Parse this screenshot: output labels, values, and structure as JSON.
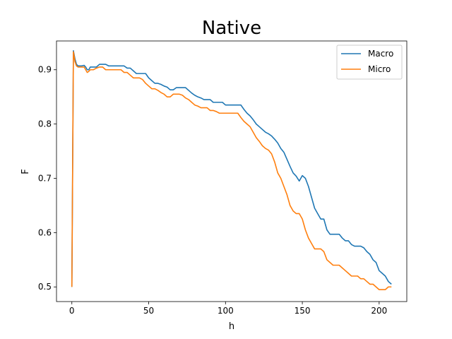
{
  "chart_data": {
    "type": "line",
    "title": "Native",
    "xlabel": "h",
    "ylabel": "F",
    "xlim": [
      -10,
      218
    ],
    "ylim": [
      0.473,
      0.953
    ],
    "xticks": [
      0,
      50,
      100,
      150,
      200
    ],
    "yticks": [
      0.5,
      0.6,
      0.7,
      0.8,
      0.9
    ],
    "grid": false,
    "legend_position": "top-right",
    "series": [
      {
        "name": "Macro",
        "color": "#1f77b4",
        "x": [
          0,
          1,
          2,
          3,
          4,
          6,
          8,
          9,
          10,
          11,
          12,
          14,
          16,
          18,
          20,
          22,
          24,
          26,
          28,
          30,
          32,
          34,
          36,
          38,
          40,
          42,
          44,
          46,
          48,
          50,
          52,
          54,
          56,
          58,
          60,
          62,
          64,
          66,
          68,
          70,
          72,
          74,
          76,
          78,
          80,
          82,
          84,
          86,
          88,
          90,
          92,
          94,
          96,
          98,
          100,
          102,
          104,
          106,
          108,
          110,
          112,
          114,
          116,
          118,
          120,
          122,
          124,
          126,
          128,
          130,
          132,
          134,
          136,
          138,
          140,
          142,
          144,
          146,
          148,
          150,
          152,
          154,
          156,
          158,
          160,
          162,
          164,
          166,
          168,
          170,
          172,
          174,
          176,
          178,
          180,
          182,
          184,
          186,
          188,
          190,
          192,
          194,
          196,
          198,
          200,
          202,
          204,
          206,
          208
        ],
        "values": [
          0.5,
          0.935,
          0.92,
          0.91,
          0.907,
          0.907,
          0.908,
          0.905,
          0.9,
          0.9,
          0.905,
          0.905,
          0.905,
          0.91,
          0.91,
          0.91,
          0.907,
          0.907,
          0.907,
          0.907,
          0.907,
          0.907,
          0.903,
          0.903,
          0.898,
          0.893,
          0.893,
          0.893,
          0.893,
          0.885,
          0.88,
          0.875,
          0.875,
          0.873,
          0.87,
          0.868,
          0.863,
          0.863,
          0.867,
          0.867,
          0.867,
          0.867,
          0.862,
          0.857,
          0.853,
          0.85,
          0.848,
          0.845,
          0.845,
          0.845,
          0.84,
          0.84,
          0.84,
          0.84,
          0.835,
          0.835,
          0.835,
          0.835,
          0.835,
          0.835,
          0.827,
          0.82,
          0.815,
          0.808,
          0.8,
          0.795,
          0.79,
          0.785,
          0.782,
          0.778,
          0.772,
          0.765,
          0.755,
          0.748,
          0.735,
          0.722,
          0.71,
          0.704,
          0.695,
          0.705,
          0.7,
          0.685,
          0.665,
          0.645,
          0.635,
          0.625,
          0.625,
          0.605,
          0.597,
          0.597,
          0.597,
          0.597,
          0.59,
          0.585,
          0.585,
          0.578,
          0.575,
          0.575,
          0.575,
          0.572,
          0.565,
          0.56,
          0.55,
          0.545,
          0.53,
          0.525,
          0.52,
          0.51,
          0.505
        ]
      },
      {
        "name": "Micro",
        "color": "#ff7f0e",
        "x": [
          0,
          1,
          2,
          3,
          4,
          6,
          8,
          9,
          10,
          11,
          12,
          14,
          16,
          18,
          20,
          22,
          24,
          26,
          28,
          30,
          32,
          34,
          36,
          38,
          40,
          42,
          44,
          46,
          48,
          50,
          52,
          54,
          56,
          58,
          60,
          62,
          64,
          66,
          68,
          70,
          72,
          74,
          76,
          78,
          80,
          82,
          84,
          86,
          88,
          90,
          92,
          94,
          96,
          98,
          100,
          102,
          104,
          106,
          108,
          110,
          112,
          114,
          116,
          118,
          120,
          122,
          124,
          126,
          128,
          130,
          132,
          134,
          136,
          138,
          140,
          142,
          144,
          146,
          148,
          150,
          152,
          154,
          156,
          158,
          160,
          162,
          164,
          166,
          168,
          170,
          172,
          174,
          176,
          178,
          180,
          182,
          184,
          186,
          188,
          190,
          192,
          194,
          196,
          198,
          200,
          202,
          204,
          206,
          208
        ],
        "values": [
          0.5,
          0.933,
          0.915,
          0.907,
          0.905,
          0.905,
          0.905,
          0.9,
          0.895,
          0.897,
          0.9,
          0.9,
          0.903,
          0.905,
          0.905,
          0.9,
          0.9,
          0.9,
          0.9,
          0.9,
          0.9,
          0.895,
          0.895,
          0.89,
          0.885,
          0.885,
          0.885,
          0.882,
          0.875,
          0.87,
          0.865,
          0.865,
          0.862,
          0.858,
          0.855,
          0.85,
          0.85,
          0.855,
          0.855,
          0.855,
          0.853,
          0.848,
          0.845,
          0.84,
          0.835,
          0.833,
          0.83,
          0.83,
          0.83,
          0.825,
          0.825,
          0.823,
          0.82,
          0.82,
          0.82,
          0.82,
          0.82,
          0.82,
          0.82,
          0.812,
          0.805,
          0.8,
          0.795,
          0.785,
          0.775,
          0.768,
          0.76,
          0.755,
          0.752,
          0.745,
          0.73,
          0.71,
          0.7,
          0.685,
          0.67,
          0.65,
          0.64,
          0.635,
          0.635,
          0.625,
          0.605,
          0.59,
          0.58,
          0.57,
          0.57,
          0.57,
          0.565,
          0.55,
          0.545,
          0.54,
          0.54,
          0.54,
          0.535,
          0.53,
          0.525,
          0.52,
          0.52,
          0.52,
          0.515,
          0.515,
          0.51,
          0.505,
          0.505,
          0.5,
          0.495,
          0.495,
          0.495,
          0.5,
          0.5
        ]
      }
    ]
  }
}
